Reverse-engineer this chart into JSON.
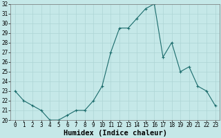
{
  "xlabel": "Humidex (Indice chaleur)",
  "humidex_data": [
    [
      0,
      23
    ],
    [
      1,
      22
    ],
    [
      2,
      21.5
    ],
    [
      3,
      21
    ],
    [
      4,
      20
    ],
    [
      5,
      20
    ],
    [
      6,
      20.5
    ],
    [
      7,
      21
    ],
    [
      8,
      21
    ],
    [
      9,
      22
    ],
    [
      10,
      23.5
    ],
    [
      11,
      27
    ],
    [
      12,
      29.5
    ],
    [
      13,
      29.5
    ],
    [
      14,
      30.5
    ],
    [
      15,
      31.5
    ],
    [
      16,
      32
    ],
    [
      17,
      26.5
    ],
    [
      18,
      28
    ],
    [
      19,
      25
    ],
    [
      20,
      25.5
    ],
    [
      21,
      23.5
    ],
    [
      22,
      23
    ],
    [
      23,
      21.5
    ]
  ],
  "ylim": [
    20,
    32
  ],
  "xlim": [
    -0.5,
    23.5
  ],
  "background_color": "#c5e8e8",
  "grid_color": "#aed4d4",
  "line_color": "#1a6b6b",
  "marker_color": "#1a6b6b",
  "yticks": [
    20,
    21,
    22,
    23,
    24,
    25,
    26,
    27,
    28,
    29,
    30,
    31,
    32
  ],
  "xticks": [
    0,
    1,
    2,
    3,
    4,
    5,
    6,
    7,
    8,
    9,
    10,
    11,
    12,
    13,
    14,
    15,
    16,
    17,
    18,
    19,
    20,
    21,
    22,
    23
  ],
  "tick_fontsize": 5.5,
  "xlabel_fontsize": 7.5
}
